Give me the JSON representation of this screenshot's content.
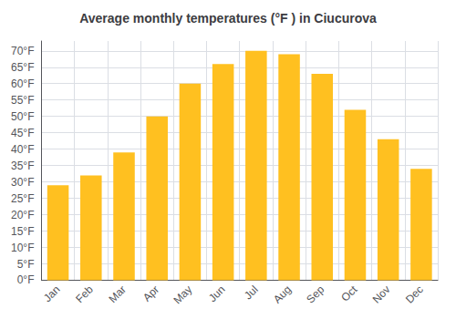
{
  "chart_data": {
    "type": "bar",
    "title": "Average monthly temperatures (°F ) in Ciucurova",
    "categories": [
      "Jan",
      "Feb",
      "Mar",
      "Apr",
      "May",
      "Jun",
      "Jul",
      "Aug",
      "Sep",
      "Oct",
      "Nov",
      "Dec"
    ],
    "values": [
      29,
      32,
      39,
      50,
      60,
      66,
      70,
      69,
      63,
      52,
      43,
      34
    ],
    "color": "#FFC020",
    "ylim": [
      0,
      73
    ],
    "yticks": [
      {
        "value": 0,
        "label": "0°F"
      },
      {
        "value": 5,
        "label": "5°F"
      },
      {
        "value": 10,
        "label": "10°F"
      },
      {
        "value": 15,
        "label": "15°F"
      },
      {
        "value": 20,
        "label": "20°F"
      },
      {
        "value": 25,
        "label": "25°F"
      },
      {
        "value": 30,
        "label": "30°F"
      },
      {
        "value": 35,
        "label": "35°F"
      },
      {
        "value": 40,
        "label": "40°F"
      },
      {
        "value": 45,
        "label": "45°F"
      },
      {
        "value": 50,
        "label": "50°F"
      },
      {
        "value": 55,
        "label": "55°F"
      },
      {
        "value": 60,
        "label": "60°F"
      },
      {
        "value": 65,
        "label": "65°F"
      },
      {
        "value": 70,
        "label": "70°F"
      }
    ],
    "grid": true
  }
}
